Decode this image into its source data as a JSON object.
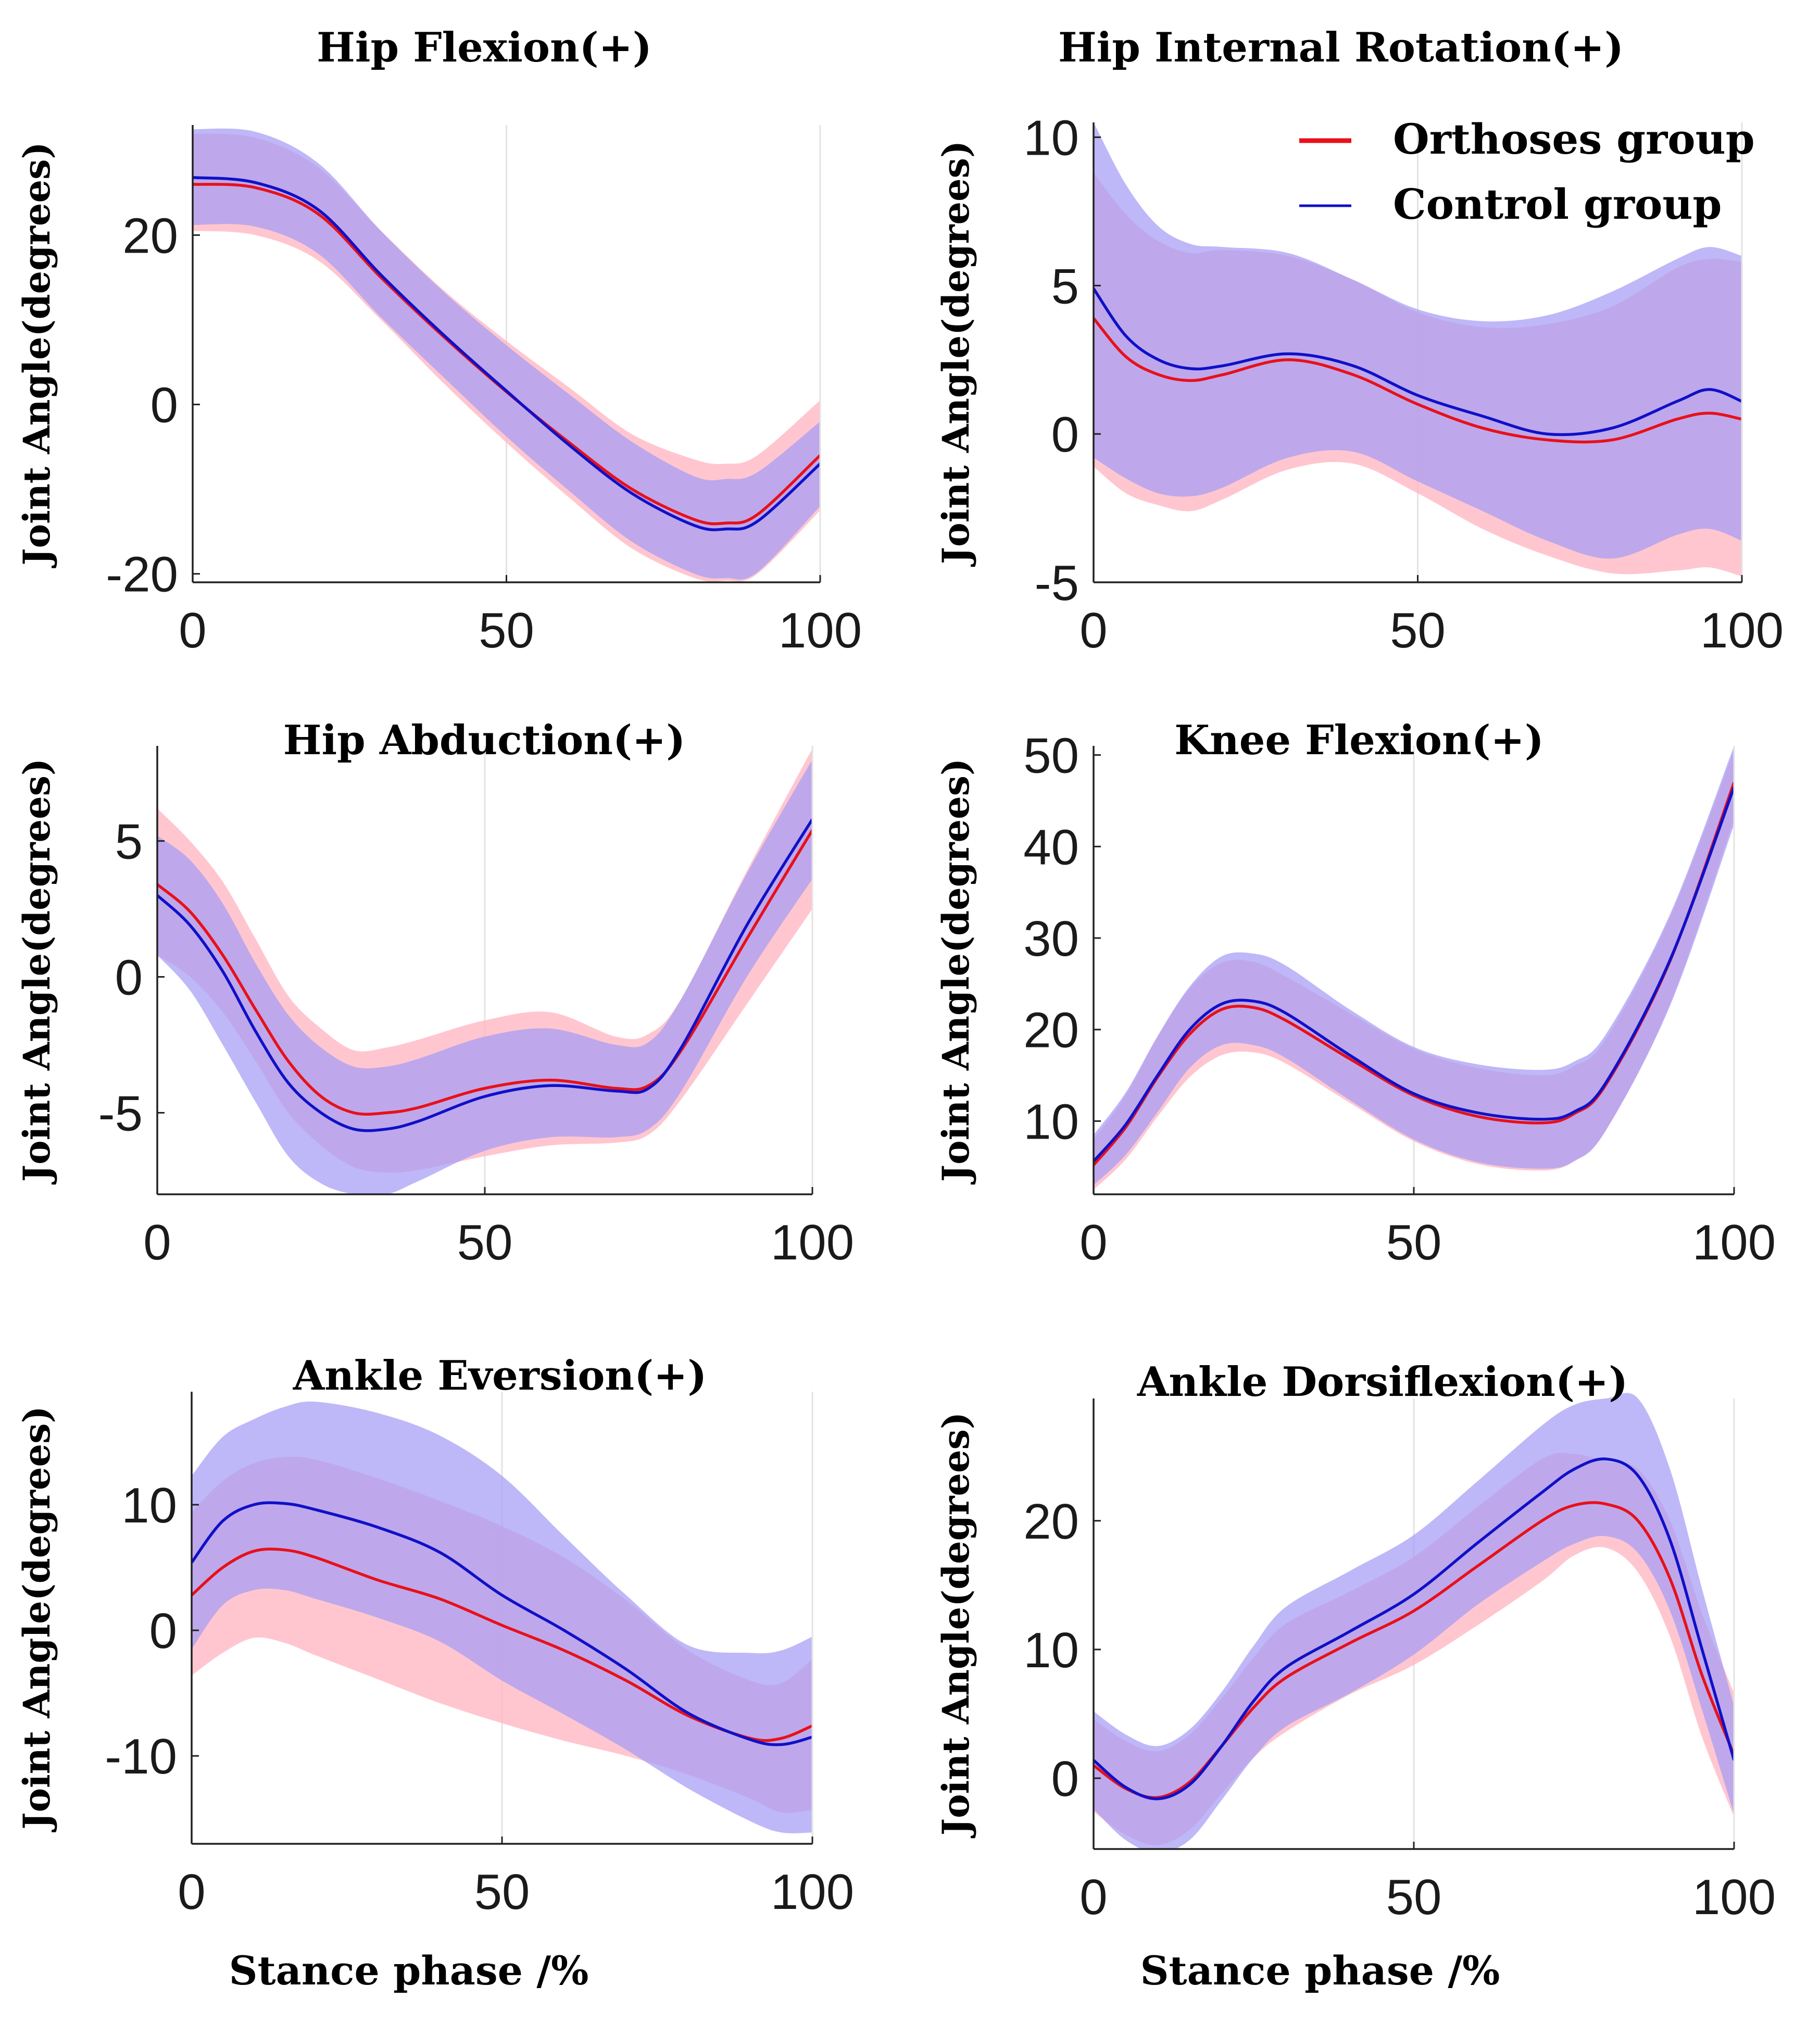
{
  "chart_data": [
    {
      "type": "line",
      "title": "Hip Flexion(+)",
      "xlabel": "",
      "ylabel": "Joint Angle(degrees)",
      "xlim": [
        0,
        100
      ],
      "ylim": [
        -21,
        33
      ],
      "xticks": [
        0,
        50,
        100
      ],
      "yticks": [
        -20,
        0,
        20
      ],
      "xtick_labels": [
        "0",
        "50",
        "100"
      ],
      "ytick_labels": [
        "-20",
        "0",
        "20"
      ],
      "x": [
        0,
        10,
        20,
        30,
        40,
        50,
        60,
        70,
        80,
        85,
        90,
        100
      ],
      "series": [
        {
          "name": "Orthoses group",
          "color": "#e8101a",
          "band_color": "#ffb6c1",
          "values": [
            26,
            25.6,
            22.5,
            15,
            8,
            1.5,
            -4.5,
            -10,
            -13.6,
            -14,
            -13,
            -6
          ],
          "lower": [
            20.5,
            20,
            17,
            10,
            2.5,
            -4.5,
            -11,
            -17,
            -20.5,
            -20.8,
            -20,
            -12.5
          ],
          "upper": [
            32,
            31.5,
            28,
            20.5,
            13.5,
            7.5,
            2,
            -3.5,
            -6.5,
            -7,
            -6,
            0.5
          ]
        },
        {
          "name": "Control group",
          "color": "#1010c8",
          "band_color": "#a59cf5",
          "values": [
            26.8,
            26.2,
            23,
            15.3,
            8.2,
            1.6,
            -4.8,
            -10.5,
            -14.3,
            -14.7,
            -13.8,
            -7
          ],
          "lower": [
            21.2,
            21,
            17.8,
            10.3,
            3.2,
            -3.8,
            -10.2,
            -16.2,
            -20,
            -20.5,
            -19.8,
            -12
          ],
          "upper": [
            32.5,
            32.2,
            28.5,
            20.5,
            13.3,
            7,
            1.2,
            -4.4,
            -8.5,
            -8.8,
            -8,
            -2
          ]
        }
      ]
    },
    {
      "type": "line",
      "title": "Hip Internal Rotation(+)",
      "xlabel": "",
      "ylabel": "Joint Angle(degrees)",
      "xlim": [
        0,
        100
      ],
      "ylim": [
        -5,
        10.5
      ],
      "xticks": [
        0,
        50,
        100
      ],
      "yticks": [
        -5,
        0,
        5,
        10
      ],
      "xtick_labels": [
        "0",
        "50",
        "100"
      ],
      "ytick_labels": [
        "-5",
        "0",
        "5",
        "10"
      ],
      "legend": {
        "position": "top-right",
        "entries": [
          "Orthoses group",
          "Control group"
        ]
      },
      "x": [
        0,
        5,
        10,
        15,
        20,
        30,
        40,
        50,
        60,
        70,
        80,
        90,
        95,
        100
      ],
      "series": [
        {
          "name": "Orthoses group",
          "color": "#e8101a",
          "band_color": "#ffb6c1",
          "values": [
            3.9,
            2.6,
            2,
            1.8,
            2,
            2.5,
            2,
            1,
            0.2,
            -0.2,
            -0.2,
            0.5,
            0.7,
            0.5
          ],
          "lower": [
            -1.1,
            -2,
            -2.4,
            -2.6,
            -2.2,
            -1.2,
            -1,
            -2,
            -3.2,
            -4.1,
            -4.7,
            -4.6,
            -4.5,
            -4.8
          ],
          "upper": [
            8.8,
            7.4,
            6.5,
            6.1,
            6.2,
            6,
            5.2,
            4.1,
            3.6,
            3.7,
            4.3,
            5.6,
            5.9,
            5.8
          ]
        },
        {
          "name": "Control group",
          "color": "#1010c8",
          "band_color": "#a59cf5",
          "values": [
            4.9,
            3.3,
            2.5,
            2.2,
            2.3,
            2.7,
            2.3,
            1.3,
            0.6,
            0,
            0.2,
            1.1,
            1.5,
            1.1
          ],
          "lower": [
            -0.8,
            -1.5,
            -2,
            -2.1,
            -1.8,
            -0.8,
            -0.6,
            -1.6,
            -2.6,
            -3.6,
            -4.2,
            -3.4,
            -3.2,
            -3.6
          ],
          "upper": [
            10.5,
            8.4,
            7,
            6.4,
            6.3,
            6.1,
            5.2,
            4.2,
            3.8,
            4,
            4.8,
            5.9,
            6.3,
            6
          ]
        }
      ]
    },
    {
      "type": "line",
      "title": "Hip Abduction(+)",
      "xlabel": "",
      "ylabel": "Joint Angle(degrees)",
      "xlim": [
        0,
        100
      ],
      "ylim": [
        -8,
        8.5
      ],
      "xticks": [
        0,
        50,
        100
      ],
      "yticks": [
        -5,
        0,
        5
      ],
      "xtick_labels": [
        "0",
        "50",
        "100"
      ],
      "ytick_labels": [
        "-5",
        "0",
        "5"
      ],
      "x": [
        0,
        5,
        10,
        15,
        20,
        25,
        30,
        35,
        40,
        50,
        60,
        70,
        75,
        80,
        90,
        100
      ],
      "series": [
        {
          "name": "Orthoses group",
          "color": "#e8101a",
          "band_color": "#ffb6c1",
          "values": [
            3.4,
            2.4,
            0.8,
            -1.2,
            -3.1,
            -4.4,
            -5,
            -5,
            -4.8,
            -4.1,
            -3.8,
            -4.1,
            -4,
            -2.7,
            1.4,
            5.4
          ],
          "lower": [
            0.8,
            0,
            -1.3,
            -3.1,
            -5,
            -6.2,
            -7,
            -7.2,
            -7.1,
            -6.6,
            -6.2,
            -6.1,
            -5.8,
            -4.5,
            -1,
            2.5
          ],
          "upper": [
            6.2,
            5,
            3.5,
            1.4,
            -0.7,
            -1.9,
            -2.7,
            -2.6,
            -2.3,
            -1.6,
            -1.3,
            -2.2,
            -2.1,
            -0.8,
            3.9,
            8.4
          ]
        },
        {
          "name": "Control group",
          "color": "#1010c8",
          "band_color": "#a59cf5",
          "values": [
            3,
            1.9,
            0.2,
            -2,
            -3.9,
            -5,
            -5.6,
            -5.6,
            -5.3,
            -4.4,
            -4,
            -4.2,
            -4.1,
            -2.6,
            1.9,
            5.8
          ],
          "lower": [
            0.8,
            -0.5,
            -2.5,
            -4.6,
            -6.6,
            -7.6,
            -8,
            -8,
            -7.5,
            -6.4,
            -5.9,
            -5.9,
            -5.6,
            -4.2,
            0,
            3.6
          ],
          "upper": [
            5.2,
            4.3,
            2.7,
            0.5,
            -1.4,
            -2.6,
            -3.3,
            -3.3,
            -3,
            -2.2,
            -1.9,
            -2.5,
            -2.4,
            -0.8,
            3.8,
            8
          ]
        }
      ]
    },
    {
      "type": "line",
      "title": "Knee Flexion(+)",
      "xlabel": "",
      "ylabel": "Joint Angle(degrees)",
      "xlim": [
        0,
        100
      ],
      "ylim": [
        2,
        51
      ],
      "xticks": [
        0,
        50,
        100
      ],
      "yticks": [
        10,
        20,
        30,
        40,
        50
      ],
      "xtick_labels": [
        "0",
        "50",
        "100"
      ],
      "ytick_labels": [
        "10",
        "20",
        "30",
        "40",
        "50"
      ],
      "x": [
        0,
        5,
        10,
        15,
        20,
        25,
        30,
        40,
        50,
        60,
        70,
        75,
        80,
        90,
        100
      ],
      "series": [
        {
          "name": "Orthoses group",
          "color": "#e8101a",
          "band_color": "#ffb6c1",
          "values": [
            5.2,
            9.3,
            14.8,
            19.5,
            22.2,
            22.4,
            21,
            16.8,
            12.8,
            10.5,
            9.8,
            10.8,
            14,
            27.5,
            47
          ],
          "lower": [
            2.5,
            5.8,
            10.5,
            14.8,
            17.2,
            17.5,
            16.3,
            12,
            7.8,
            5.3,
            4.6,
            5.6,
            9,
            22.8,
            43
          ],
          "upper": [
            8,
            12.8,
            19.2,
            24.5,
            27.3,
            27.4,
            25.8,
            21.8,
            17.9,
            15.8,
            15,
            16,
            19,
            32.3,
            50.5
          ]
        },
        {
          "name": "Control group",
          "color": "#1010c8",
          "band_color": "#a59cf5",
          "values": [
            5.6,
            9.6,
            15,
            20,
            22.8,
            23.1,
            21.8,
            17.2,
            13,
            10.9,
            10.2,
            11,
            14.2,
            27.6,
            46.5
          ],
          "lower": [
            3,
            6.3,
            11,
            15.8,
            18.3,
            18.3,
            16.9,
            12.3,
            8,
            5.5,
            4.8,
            5.6,
            9,
            22.6,
            42.4
          ],
          "upper": [
            8.5,
            13.1,
            19.3,
            24.7,
            28,
            28.3,
            27,
            22.2,
            18.1,
            16.2,
            15.6,
            16.5,
            19.5,
            32.6,
            51
          ]
        }
      ]
    },
    {
      "type": "line",
      "title": "Ankle Eversion(+)",
      "xlabel": "Stance phase /%",
      "ylabel": "Joint Angle(degrees)",
      "xlim": [
        0,
        100
      ],
      "ylim": [
        -17,
        19
      ],
      "xticks": [
        0,
        50,
        100
      ],
      "yticks": [
        -10,
        0,
        10
      ],
      "xtick_labels": [
        "0",
        "50",
        "100"
      ],
      "ytick_labels": [
        "-10",
        "0",
        "10"
      ],
      "x": [
        0,
        5,
        10,
        15,
        20,
        30,
        40,
        50,
        60,
        70,
        80,
        90,
        95,
        100
      ],
      "series": [
        {
          "name": "Orthoses group",
          "color": "#e8101a",
          "band_color": "#ffb6c1",
          "values": [
            2.8,
            5,
            6.3,
            6.4,
            5.8,
            4,
            2.5,
            0.4,
            -1.6,
            -4,
            -6.8,
            -8.6,
            -8.6,
            -7.6
          ],
          "lower": [
            -3.6,
            -1.8,
            -0.6,
            -1,
            -2,
            -3.9,
            -5.8,
            -7.4,
            -8.8,
            -10,
            -11.5,
            -13.4,
            -14.5,
            -14.3
          ],
          "upper": [
            9.4,
            11.9,
            13.3,
            13.8,
            13.6,
            12.1,
            10.3,
            8.3,
            5.8,
            2.4,
            -1.6,
            -4,
            -4.2,
            -2.3
          ]
        },
        {
          "name": "Control group",
          "color": "#1010c8",
          "band_color": "#a59cf5",
          "values": [
            5.4,
            8.7,
            10,
            10.1,
            9.6,
            8.2,
            6.2,
            2.8,
            0,
            -3.1,
            -6.6,
            -8.7,
            -9.1,
            -8.5
          ],
          "lower": [
            -1.5,
            2,
            3.2,
            3.2,
            2.5,
            1,
            -0.9,
            -4,
            -6.7,
            -9.5,
            -12.6,
            -15.2,
            -16.1,
            -16.1
          ],
          "upper": [
            12.3,
            15.4,
            16.8,
            17.8,
            18.2,
            17.3,
            15.5,
            12.3,
            7.5,
            2.8,
            -1.2,
            -1.8,
            -1.6,
            -0.5
          ]
        }
      ]
    },
    {
      "type": "line",
      "title": "Ankle Dorsiflexion(+)",
      "xlabel": "Stance phase /%",
      "ylabel": "Joint Angle(degrees)",
      "xlim": [
        0,
        100
      ],
      "ylim": [
        -5.5,
        29.5
      ],
      "xticks": [
        0,
        50,
        100
      ],
      "yticks": [
        0,
        10,
        20
      ],
      "xtick_labels": [
        "0",
        "50",
        "100"
      ],
      "ytick_labels": [
        "0",
        "10",
        "20"
      ],
      "x": [
        0,
        5,
        10,
        15,
        20,
        25,
        30,
        40,
        50,
        60,
        70,
        75,
        80,
        85,
        90,
        95,
        100
      ],
      "series": [
        {
          "name": "Orthoses group",
          "color": "#e8101a",
          "band_color": "#ffb6c1",
          "values": [
            1,
            -0.8,
            -1.5,
            -0.3,
            2.5,
            5.5,
            7.8,
            10.5,
            13,
            16.5,
            20,
            21.2,
            21.3,
            20,
            15.5,
            8,
            1.8
          ],
          "lower": [
            -2.6,
            -4.4,
            -5.2,
            -4,
            -1.2,
            1.6,
            3.6,
            6.5,
            8.8,
            11.9,
            15.3,
            17.3,
            17.9,
            16,
            11,
            3.2,
            -3
          ],
          "upper": [
            4.6,
            2.9,
            2.1,
            3.4,
            6.2,
            9.4,
            12,
            14.5,
            17.2,
            21.1,
            24.8,
            25.2,
            24.6,
            24,
            20,
            12.8,
            6.6
          ]
        },
        {
          "name": "Control group",
          "color": "#1010c8",
          "band_color": "#a59cf5",
          "values": [
            1.4,
            -0.7,
            -1.6,
            -0.5,
            2.5,
            6,
            8.6,
            11.4,
            14.3,
            18.3,
            22.2,
            24,
            24.8,
            23.5,
            18.5,
            10,
            1.4
          ],
          "lower": [
            -2.4,
            -4.8,
            -5.8,
            -4.8,
            -1.7,
            1.6,
            4,
            6.6,
            9.6,
            13.5,
            16.8,
            18.2,
            18.8,
            17.5,
            13,
            5.3,
            -2.8
          ],
          "upper": [
            5.2,
            3.4,
            2.5,
            3.8,
            6.7,
            10.3,
            13.3,
            16.1,
            18.9,
            23.1,
            27.4,
            29,
            29.5,
            29.5,
            24,
            14.7,
            5.6
          ]
        }
      ]
    }
  ]
}
